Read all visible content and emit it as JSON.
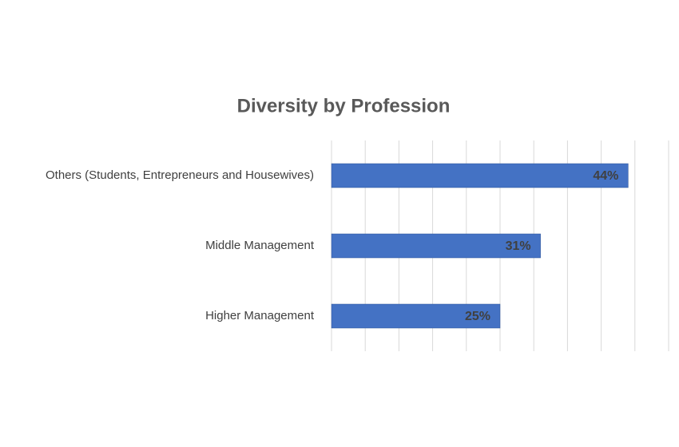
{
  "chart_data": {
    "type": "hbar",
    "title": "Diversity by Profession",
    "categories": [
      "Others (Students, Entrepreneurs and Housewives)",
      "Middle Management",
      "Higher Management"
    ],
    "values": [
      44,
      31,
      25
    ],
    "value_labels": [
      "44%",
      "31%",
      "25%"
    ],
    "color": "#4472c4",
    "xlim": [
      0,
      50
    ],
    "xticks": [
      0,
      5,
      10,
      15,
      20,
      25,
      30,
      35,
      40,
      45,
      50
    ],
    "grid": true
  }
}
